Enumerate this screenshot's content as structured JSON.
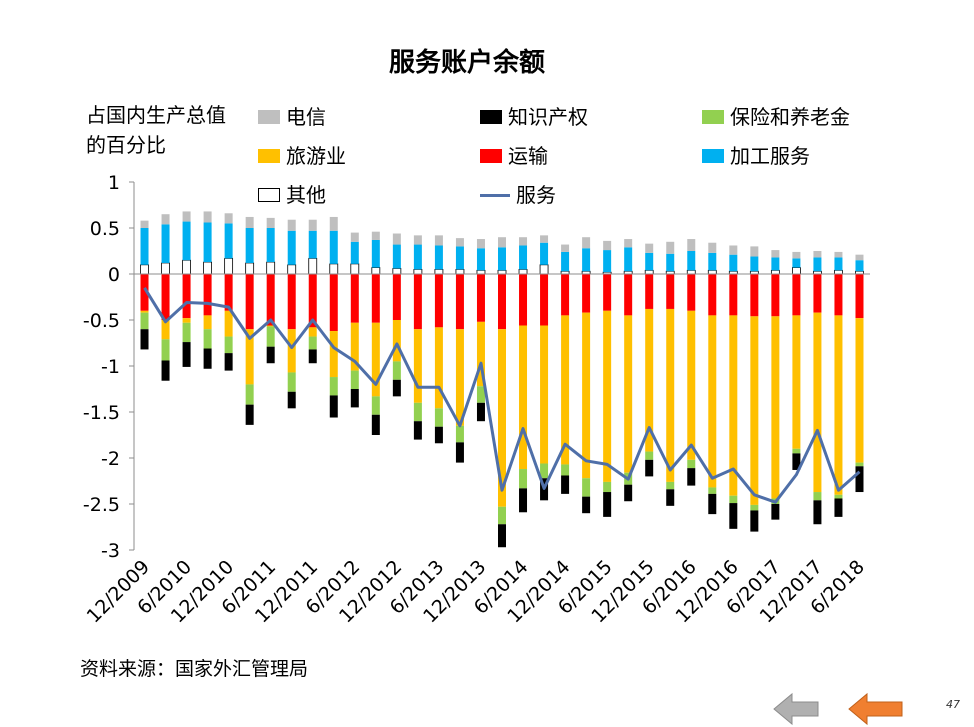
{
  "page": {
    "source": "资料来源：国家外汇管理局",
    "page_number": "47",
    "nav": {
      "prev_color": "#b0b0b0",
      "next_color": "#f07f30"
    }
  },
  "chart_data": {
    "type": "bar",
    "stacked": true,
    "title": "服务账户余额",
    "ylabel": "占国内生产总值的百分比",
    "ylim": [
      -3,
      1
    ],
    "yticks": [
      "1",
      "0.5",
      "0",
      "-0.5",
      "-1",
      "-1.5",
      "-2",
      "-2.5",
      "-3"
    ],
    "xticks": [
      "12/2009",
      "6/2010",
      "12/2010",
      "6/2011",
      "12/2011",
      "6/2012",
      "12/2012",
      "6/2013",
      "12/2013",
      "6/2014",
      "12/2014",
      "6/2015",
      "12/2015",
      "6/2016",
      "12/2016",
      "6/2017",
      "12/2017",
      "6/2018"
    ],
    "legend": [
      {
        "key": "telecom",
        "label": "电信",
        "color": "#bfbfbf",
        "kind": "box"
      },
      {
        "key": "ip",
        "label": "知识产权",
        "color": "#000000",
        "kind": "box"
      },
      {
        "key": "insurance",
        "label": "保险和养老金",
        "color": "#92d050",
        "kind": "box"
      },
      {
        "key": "travel",
        "label": "旅游业",
        "color": "#ffc000",
        "kind": "box"
      },
      {
        "key": "transport",
        "label": "运输",
        "color": "#ff0000",
        "kind": "box"
      },
      {
        "key": "processing",
        "label": "加工服务",
        "color": "#00b0f0",
        "kind": "box"
      },
      {
        "key": "other",
        "label": "其他",
        "color": "#ffffff",
        "kind": "box"
      },
      {
        "key": "services",
        "label": "服务",
        "color": "#4f6fa8",
        "kind": "line"
      }
    ],
    "positive": {
      "other": [
        0.1,
        0.12,
        0.15,
        0.13,
        0.17,
        0.12,
        0.13,
        0.1,
        0.17,
        0.11,
        0.11,
        0.07,
        0.06,
        0.05,
        0.05,
        0.05,
        0.04,
        0.04,
        0.05,
        0.1,
        0.03,
        0.03,
        0.02,
        0.03,
        0.04,
        0.03,
        0.04,
        0.04,
        0.03,
        0.03,
        0.04,
        0.07,
        0.03,
        0.04,
        0.03
      ],
      "processing": [
        0.4,
        0.42,
        0.42,
        0.43,
        0.38,
        0.38,
        0.37,
        0.37,
        0.3,
        0.36,
        0.24,
        0.3,
        0.26,
        0.27,
        0.26,
        0.25,
        0.24,
        0.25,
        0.26,
        0.24,
        0.21,
        0.25,
        0.24,
        0.26,
        0.19,
        0.19,
        0.21,
        0.19,
        0.18,
        0.16,
        0.14,
        0.1,
        0.15,
        0.14,
        0.12
      ],
      "telecom": [
        0.08,
        0.11,
        0.11,
        0.12,
        0.11,
        0.12,
        0.11,
        0.12,
        0.12,
        0.15,
        0.1,
        0.09,
        0.12,
        0.1,
        0.11,
        0.09,
        0.1,
        0.11,
        0.09,
        0.08,
        0.08,
        0.12,
        0.1,
        0.09,
        0.1,
        0.13,
        0.13,
        0.11,
        0.1,
        0.11,
        0.08,
        0.07,
        0.07,
        0.06,
        0.06
      ]
    },
    "negative": {
      "transport": [
        -0.4,
        -0.5,
        -0.48,
        -0.45,
        -0.4,
        -0.6,
        -0.56,
        -0.6,
        -0.58,
        -0.62,
        -0.53,
        -0.53,
        -0.5,
        -0.6,
        -0.58,
        -0.6,
        -0.52,
        -0.6,
        -0.56,
        -0.56,
        -0.45,
        -0.42,
        -0.4,
        -0.45,
        -0.38,
        -0.38,
        -0.4,
        -0.45,
        -0.45,
        -0.46,
        -0.46,
        -0.45,
        -0.42,
        -0.45,
        -0.48
      ],
      "travel": [
        -0.02,
        -0.21,
        -0.05,
        -0.15,
        -0.28,
        -0.6,
        -0.01,
        -0.47,
        -0.1,
        -0.5,
        -0.52,
        -0.8,
        -0.45,
        -0.8,
        -0.88,
        -1.05,
        -0.7,
        -1.93,
        -1.56,
        -1.5,
        -1.62,
        -1.8,
        -1.86,
        -1.71,
        -1.55,
        -1.88,
        -1.62,
        -1.87,
        -1.96,
        -2.05,
        -1.98,
        -1.45,
        -1.95,
        -1.95,
        -1.57
      ],
      "insurance": [
        -0.18,
        -0.23,
        -0.21,
        -0.21,
        -0.18,
        -0.22,
        -0.22,
        -0.21,
        -0.14,
        -0.2,
        -0.2,
        -0.2,
        -0.2,
        -0.2,
        -0.2,
        -0.18,
        -0.18,
        -0.19,
        -0.21,
        -0.16,
        -0.12,
        -0.2,
        -0.11,
        -0.13,
        -0.09,
        -0.08,
        -0.09,
        -0.07,
        -0.08,
        -0.06,
        -0.06,
        -0.05,
        -0.09,
        -0.04,
        -0.04
      ],
      "ip": [
        -0.22,
        -0.22,
        -0.27,
        -0.22,
        -0.19,
        -0.22,
        -0.18,
        -0.18,
        -0.15,
        -0.24,
        -0.2,
        -0.22,
        -0.18,
        -0.2,
        -0.18,
        -0.22,
        -0.2,
        -0.25,
        -0.26,
        -0.24,
        -0.2,
        -0.18,
        -0.27,
        -0.18,
        -0.18,
        -0.18,
        -0.19,
        -0.22,
        -0.28,
        -0.23,
        -0.17,
        -0.18,
        -0.26,
        -0.2,
        -0.28
      ]
    },
    "services_line": [
      -0.15,
      -0.52,
      -0.31,
      -0.32,
      -0.36,
      -0.7,
      -0.5,
      -0.8,
      -0.5,
      -0.8,
      -0.95,
      -1.2,
      -0.76,
      -1.23,
      -1.23,
      -1.65,
      -0.97,
      -2.35,
      -1.68,
      -2.33,
      -1.85,
      -2.03,
      -2.07,
      -2.23,
      -1.67,
      -2.13,
      -1.86,
      -2.22,
      -2.12,
      -2.4,
      -2.48,
      -2.18,
      -1.7,
      -2.35,
      -2.15
    ]
  }
}
